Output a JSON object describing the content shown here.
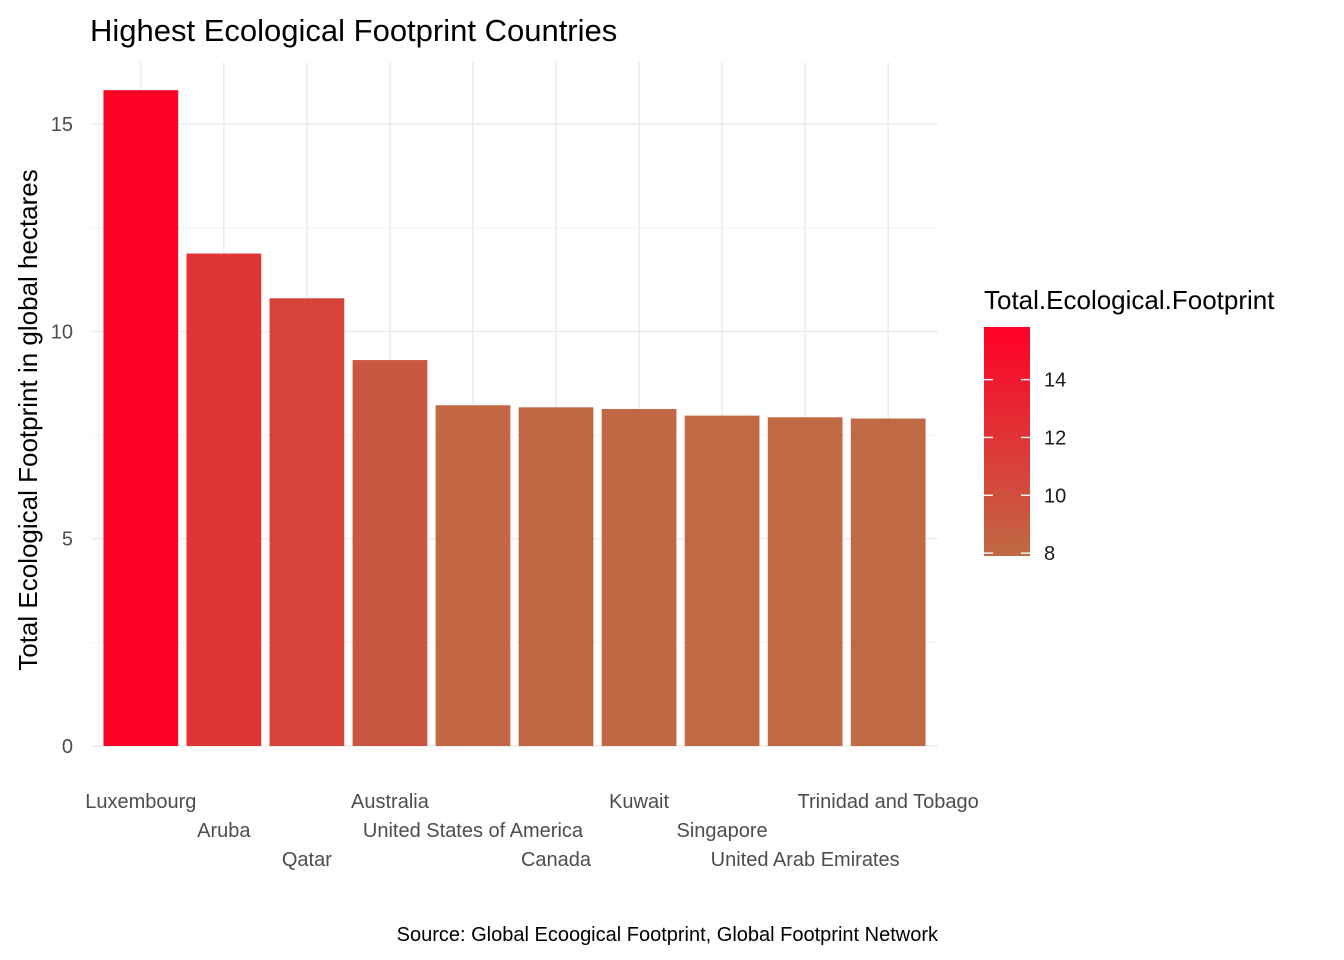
{
  "chart_data": {
    "type": "bar",
    "title": "Highest Ecological Footprint Countries",
    "xlabel": "",
    "ylabel": "Total Ecological Footprint in global hectares",
    "caption": "Source: Global Ecoogical Footprint, Global Footprint Network",
    "categories": [
      "Luxembourg",
      "Aruba",
      "Qatar",
      "Australia",
      "United States of America",
      "Canada",
      "Kuwait",
      "Singapore",
      "United Arab Emirates",
      "Trinidad and Tobago"
    ],
    "values": [
      15.82,
      11.88,
      10.8,
      9.31,
      8.22,
      8.17,
      8.13,
      7.97,
      7.93,
      7.9
    ],
    "ylim": [
      0,
      16.5
    ],
    "yticks": [
      0,
      5,
      10,
      15
    ],
    "grid": true,
    "legend": {
      "title": "Total.Ecological.Footprint",
      "position": "right",
      "min": 7.9,
      "max": 15.82,
      "ticks": [
        8,
        10,
        12,
        14
      ],
      "color_low": "#BF6A44",
      "color_high": "#FF0027"
    }
  }
}
